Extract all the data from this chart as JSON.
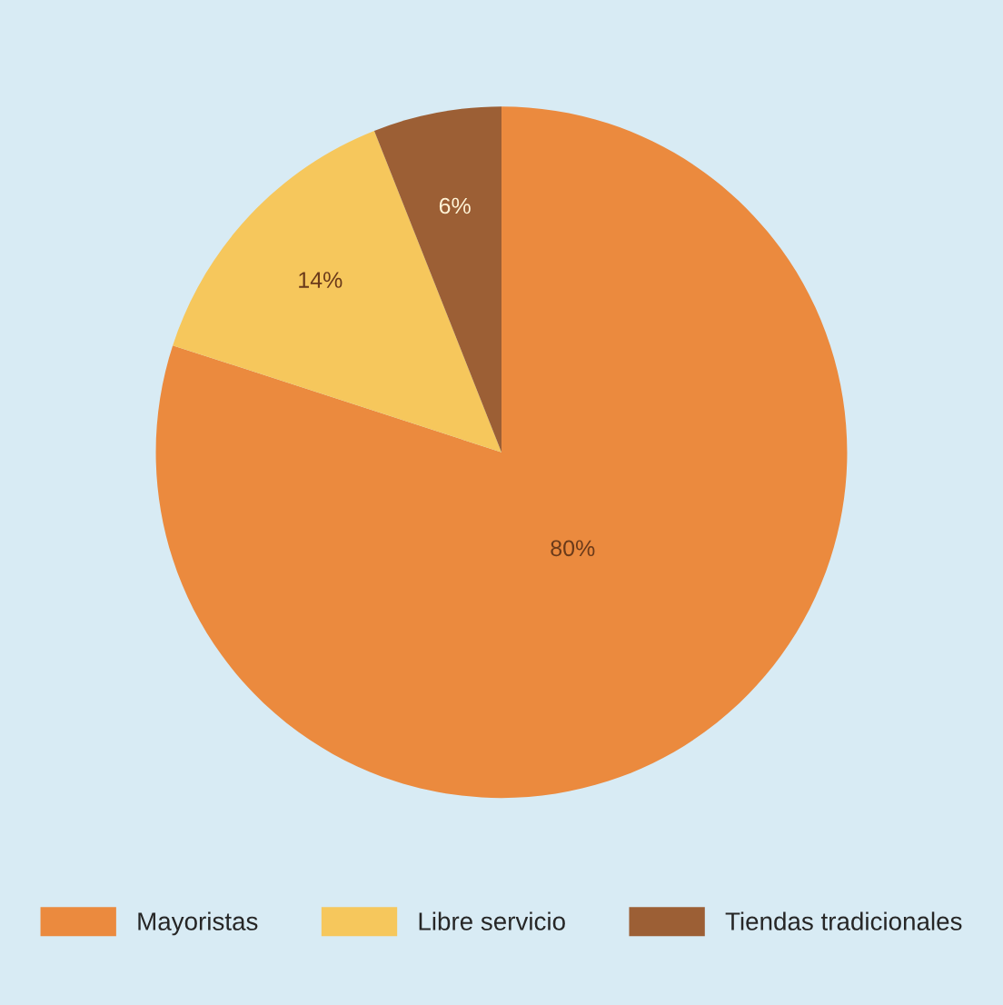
{
  "chart_data": {
    "type": "pie",
    "categories": [
      "Mayoristas",
      "Libre servicio",
      "Tiendas tradicionales"
    ],
    "values": [
      80,
      14,
      6
    ],
    "colors": [
      "#eb8a3e",
      "#f6c75c",
      "#9c5f35"
    ],
    "value_labels": [
      "80%",
      "14%",
      "6%"
    ],
    "legend": "bottom"
  }
}
